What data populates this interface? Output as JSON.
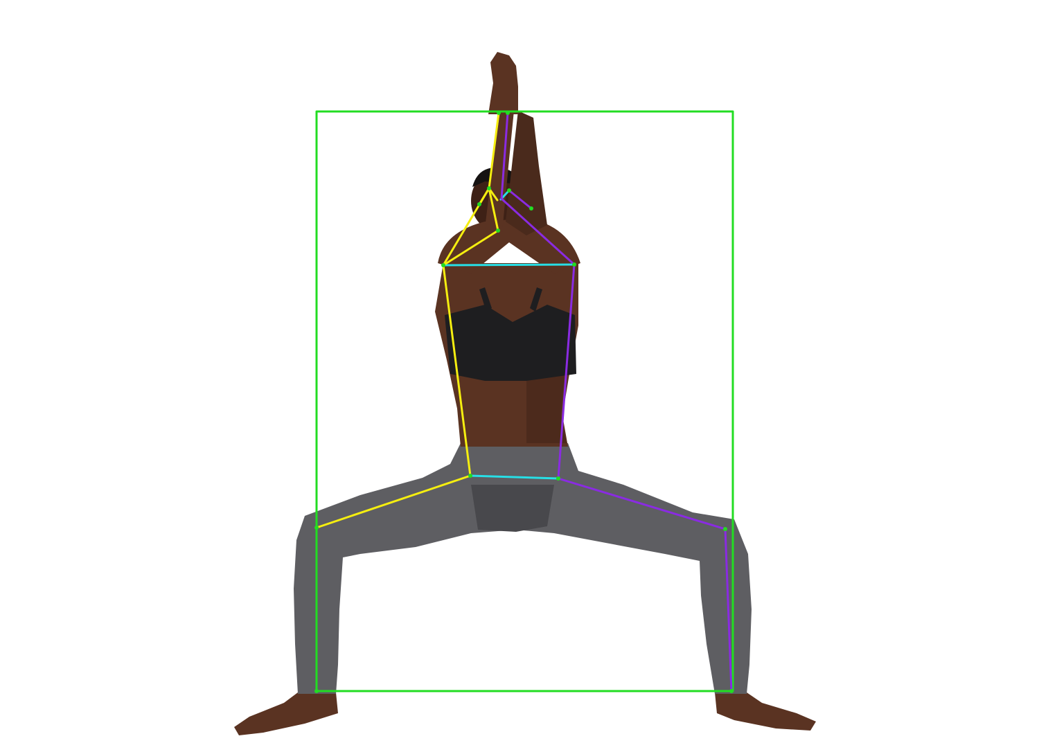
{
  "colors": {
    "background": "#ffffff",
    "box": "#22dd22",
    "left_side": "#f5ee10",
    "right_side": "#8a2be2",
    "center": "#27dfe6",
    "joint": "#22dd22",
    "skin": "#5a3322",
    "skin_shadow": "#3e2116",
    "bra": "#1e1e20",
    "leggings": "#5e5e62",
    "leggings_dark": "#48484c",
    "hair": "#161312"
  }
}
